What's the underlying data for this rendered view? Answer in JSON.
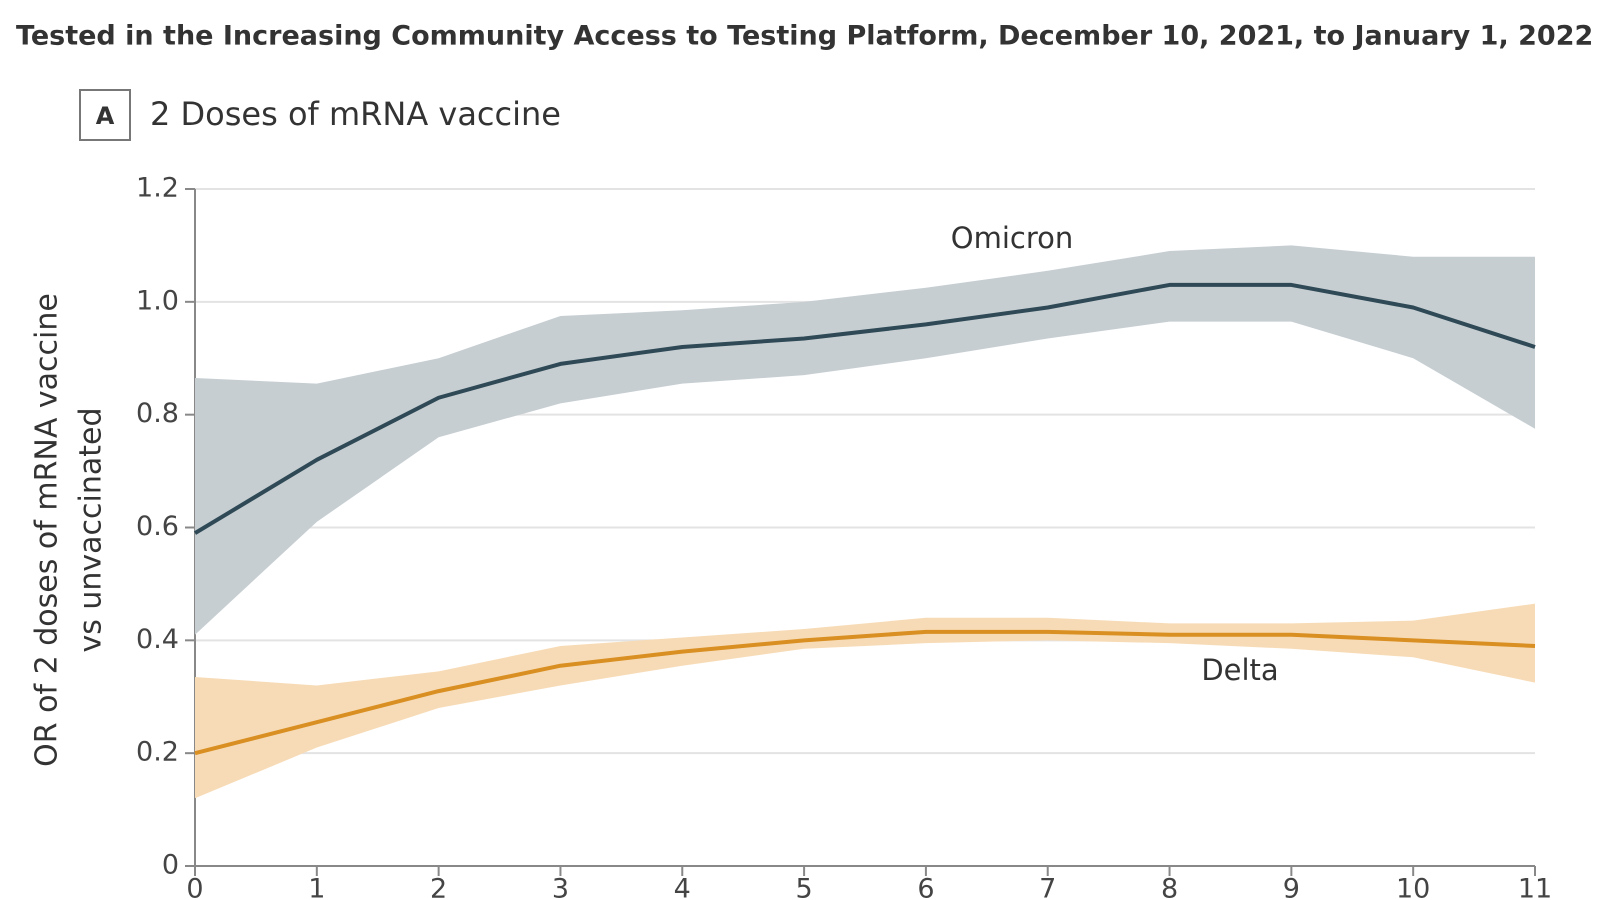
{
  "chart_data": {
    "type": "line",
    "subtitle": "Tested in the Increasing Community Access to Testing Platform, December 10, 2021, to January 1, 2022",
    "panel_label": "A",
    "title": "2 Doses of mRNA vaccine",
    "ylabel": [
      "OR of 2 doses of mRNA vaccine",
      "vs unvaccinated"
    ],
    "x": [
      0,
      1,
      2,
      3,
      4,
      5,
      6,
      7,
      8,
      9,
      10,
      11
    ],
    "xlim": [
      0,
      11
    ],
    "xticks": [
      0,
      1,
      2,
      3,
      4,
      5,
      6,
      7,
      8,
      9,
      10,
      11
    ],
    "ylim": [
      0,
      1.2
    ],
    "yticks": [
      0,
      0.2,
      0.4,
      0.6,
      0.8,
      {
        "value": 1,
        "label": "1.0"
      },
      1.2
    ],
    "grid": true,
    "series": [
      {
        "name": "Omicron",
        "color": "#2f4a56",
        "band_color": "#c6ced2",
        "values": [
          0.59,
          0.72,
          0.83,
          0.89,
          0.92,
          0.935,
          0.96,
          0.99,
          1.03,
          1.03,
          0.99,
          0.92
        ],
        "lower": [
          0.41,
          0.61,
          0.76,
          0.82,
          0.855,
          0.87,
          0.9,
          0.935,
          0.965,
          0.965,
          0.9,
          0.775
        ],
        "upper": [
          0.865,
          0.855,
          0.9,
          0.975,
          0.985,
          1.0,
          1.025,
          1.055,
          1.09,
          1.1,
          1.08,
          1.08
        ]
      },
      {
        "name": "Delta",
        "color": "#d98f22",
        "band_color": "#f7dbb6",
        "values": [
          0.2,
          0.255,
          0.31,
          0.355,
          0.38,
          0.4,
          0.415,
          0.415,
          0.41,
          0.41,
          0.4,
          0.39
        ],
        "lower": [
          0.12,
          0.21,
          0.28,
          0.32,
          0.355,
          0.385,
          0.395,
          0.4,
          0.395,
          0.385,
          0.37,
          0.325
        ],
        "upper": [
          0.335,
          0.32,
          0.345,
          0.39,
          0.405,
          0.42,
          0.44,
          0.44,
          0.43,
          0.43,
          0.435,
          0.465
        ]
      }
    ]
  }
}
